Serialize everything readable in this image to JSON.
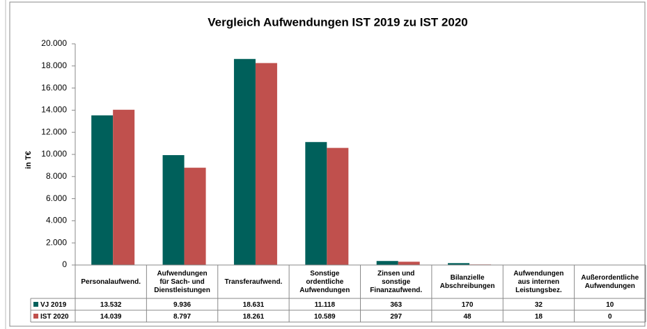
{
  "chart_data": {
    "type": "bar",
    "title": "Vergleich Aufwendungen IST 2019 zu IST 2020",
    "ylabel": "in T€",
    "categories": [
      "Personalaufwend.",
      "Aufwendungen\nfür Sach- und\nDienstleistungen",
      "Transferaufwend.",
      "Sonstige\nordentliche\nAufwendungen",
      "Zinsen und\nsonstige\nFinanzaufwend.",
      "Bilanzielle\nAbschreibungen",
      "Aufwendungen\naus internen\nLeistungsbez.",
      "Außerordentliche\nAufwendungen"
    ],
    "series": [
      {
        "name": "VJ 2019",
        "color": "#00605b",
        "values": [
          13532,
          9936,
          18631,
          11118,
          363,
          170,
          32,
          10
        ],
        "value_labels": [
          "13.532",
          "9.936",
          "18.631",
          "11.118",
          "363",
          "170",
          "32",
          "10"
        ]
      },
      {
        "name": "IST 2020",
        "color": "#c0504d",
        "values": [
          14039,
          8797,
          18261,
          10589,
          297,
          48,
          18,
          0
        ],
        "value_labels": [
          "14.039",
          "8.797",
          "18.261",
          "10.589",
          "297",
          "48",
          "18",
          "0"
        ]
      }
    ],
    "ylim": [
      0,
      20000
    ],
    "yticks": [
      0,
      {
        "value": 2000,
        "label": "2.000"
      },
      {
        "value": 4000,
        "label": "4.000"
      },
      {
        "value": 6000,
        "label": "6.000"
      },
      {
        "value": 8000,
        "label": "8.000"
      },
      {
        "value": 10000,
        "label": "10.000"
      },
      {
        "value": 12000,
        "label": "12.000"
      },
      {
        "value": 14000,
        "label": "14.000"
      },
      {
        "value": 16000,
        "label": "16.000"
      },
      {
        "value": 18000,
        "label": "18.000"
      },
      {
        "value": 20000,
        "label": "20.000"
      }
    ],
    "grid": false,
    "data_table": true
  }
}
